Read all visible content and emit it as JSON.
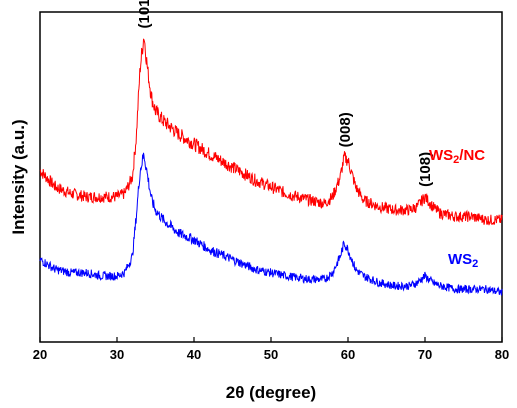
{
  "chart_data": {
    "type": "line",
    "xlabel": "2θ (degree)",
    "ylabel": "Intensity (a.u.)",
    "xlim": [
      20,
      80
    ],
    "ylim": [
      0,
      1
    ],
    "y_ticks_shown": false,
    "grid": false,
    "x_ticks": [
      20,
      30,
      40,
      50,
      60,
      70,
      80
    ],
    "colors": {
      "WS2/NC": "#ff0000",
      "WS2": "#0000ff"
    },
    "series": [
      {
        "name": "WS2/NC",
        "color": "#ff0000",
        "x": [
          20,
          22,
          24,
          26,
          28,
          30,
          31,
          32,
          32.5,
          33,
          33.5,
          34,
          34.5,
          35,
          36,
          37,
          38,
          40,
          42,
          45,
          48,
          50,
          52,
          55,
          57,
          58,
          59,
          59.5,
          60,
          61,
          62,
          64,
          66,
          68,
          69,
          70,
          71,
          72,
          74,
          76,
          78,
          80
        ],
        "y": [
          0.52,
          0.47,
          0.45,
          0.44,
          0.44,
          0.44,
          0.45,
          0.5,
          0.62,
          0.83,
          0.93,
          0.82,
          0.74,
          0.7,
          0.67,
          0.65,
          0.63,
          0.6,
          0.57,
          0.53,
          0.49,
          0.47,
          0.45,
          0.43,
          0.42,
          0.44,
          0.5,
          0.56,
          0.55,
          0.47,
          0.43,
          0.41,
          0.4,
          0.4,
          0.41,
          0.44,
          0.41,
          0.39,
          0.38,
          0.38,
          0.37,
          0.37
        ]
      },
      {
        "name": "WS2",
        "color": "#0000ff",
        "x": [
          20,
          22,
          24,
          26,
          28,
          30,
          31,
          32,
          32.5,
          33,
          33.5,
          34,
          34.5,
          35,
          36,
          37,
          38,
          40,
          42,
          45,
          48,
          50,
          52,
          55,
          57,
          58,
          59,
          59.5,
          60,
          61,
          62,
          64,
          66,
          68,
          69,
          70,
          71,
          72,
          74,
          76,
          78,
          80
        ],
        "y": [
          0.25,
          0.22,
          0.21,
          0.21,
          0.2,
          0.2,
          0.21,
          0.26,
          0.38,
          0.52,
          0.57,
          0.5,
          0.43,
          0.4,
          0.37,
          0.35,
          0.33,
          0.31,
          0.28,
          0.25,
          0.22,
          0.21,
          0.2,
          0.19,
          0.19,
          0.21,
          0.26,
          0.3,
          0.28,
          0.22,
          0.2,
          0.18,
          0.17,
          0.17,
          0.18,
          0.2,
          0.18,
          0.17,
          0.16,
          0.16,
          0.16,
          0.15
        ]
      }
    ],
    "series_labels": [
      "WS2/NC",
      "WS2"
    ],
    "annotations": [
      {
        "text": "(101)",
        "x": 33.5,
        "y": 0.95
      },
      {
        "text": "(008)",
        "x": 59.6,
        "y": 0.59
      },
      {
        "text": "(108)",
        "x": 70,
        "y": 0.47
      }
    ]
  }
}
